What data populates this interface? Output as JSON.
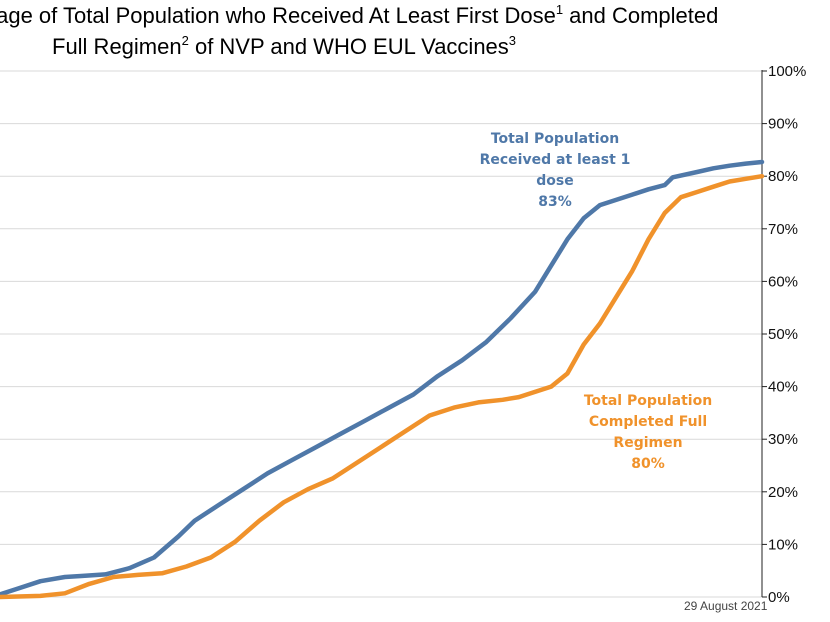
{
  "title": {
    "line1_prefix": "tage of Total Population who Received At Least First Dose",
    "line1_sup1": "1",
    "line1_mid": " and Completed",
    "line2_prefix": "Full Regimen",
    "line2_sup2": "2",
    "line2_mid": "  of NVP and WHO EUL Vaccines",
    "line2_sup3": "3"
  },
  "date_note": "29 August 2021",
  "colors": {
    "first_dose": "#4f78a8",
    "full_regimen": "#f0922b",
    "grid": "#d9d9d9",
    "axis": "#222222"
  },
  "chart_data": {
    "type": "line",
    "ylim": [
      0,
      100
    ],
    "y_ticks": [
      0,
      10,
      20,
      30,
      40,
      50,
      60,
      70,
      80,
      90,
      100
    ],
    "y_tick_labels": [
      "0%",
      "10%",
      "20%",
      "30%",
      "40%",
      "50%",
      "60%",
      "70%",
      "80%",
      "90%",
      "100%"
    ],
    "grid": true,
    "x_end_label": "29 August 2021",
    "series": [
      {
        "name": "Total Population Received at least 1 dose",
        "label_lines": [
          "Total Population",
          "Received at least 1",
          "dose",
          "83%"
        ],
        "color": "#4f78a8",
        "points": [
          [
            0,
            0.5
          ],
          [
            2,
            1.5
          ],
          [
            5,
            3.0
          ],
          [
            8,
            3.8
          ],
          [
            10,
            4.0
          ],
          [
            13,
            4.3
          ],
          [
            16,
            5.5
          ],
          [
            19,
            7.5
          ],
          [
            22,
            11.5
          ],
          [
            24,
            14.5
          ],
          [
            27,
            17.5
          ],
          [
            30,
            20.5
          ],
          [
            33,
            23.5
          ],
          [
            36,
            26.0
          ],
          [
            39,
            28.5
          ],
          [
            42,
            31.0
          ],
          [
            45,
            33.5
          ],
          [
            48,
            36.0
          ],
          [
            51,
            38.5
          ],
          [
            54,
            42.0
          ],
          [
            57,
            45.0
          ],
          [
            60,
            48.5
          ],
          [
            63,
            53.0
          ],
          [
            66,
            58.0
          ],
          [
            68,
            63.0
          ],
          [
            70,
            68.0
          ],
          [
            72,
            72.0
          ],
          [
            74,
            74.5
          ],
          [
            76,
            75.5
          ],
          [
            78,
            76.5
          ],
          [
            80,
            77.5
          ],
          [
            82,
            78.3
          ],
          [
            83,
            79.8
          ],
          [
            86,
            80.8
          ],
          [
            88,
            81.5
          ],
          [
            90,
            82.0
          ],
          [
            92,
            82.4
          ],
          [
            94,
            82.7
          ]
        ]
      },
      {
        "name": "Total Population Completed Full Regimen",
        "label_lines": [
          "Total Population",
          "Completed Full",
          "Regimen",
          "80%"
        ],
        "color": "#f0922b",
        "points": [
          [
            0,
            0
          ],
          [
            5,
            0.2
          ],
          [
            8,
            0.7
          ],
          [
            11,
            2.5
          ],
          [
            14,
            3.8
          ],
          [
            17,
            4.2
          ],
          [
            20,
            4.5
          ],
          [
            23,
            5.8
          ],
          [
            26,
            7.5
          ],
          [
            29,
            10.5
          ],
          [
            32,
            14.5
          ],
          [
            35,
            18.0
          ],
          [
            38,
            20.5
          ],
          [
            41,
            22.5
          ],
          [
            44,
            25.5
          ],
          [
            47,
            28.5
          ],
          [
            50,
            31.5
          ],
          [
            53,
            34.5
          ],
          [
            56,
            36.0
          ],
          [
            59,
            37.0
          ],
          [
            62,
            37.5
          ],
          [
            64,
            38.0
          ],
          [
            66,
            39.0
          ],
          [
            68,
            40.0
          ],
          [
            70,
            42.5
          ],
          [
            72,
            48.0
          ],
          [
            74,
            52.0
          ],
          [
            76,
            57.0
          ],
          [
            78,
            62.0
          ],
          [
            80,
            68.0
          ],
          [
            82,
            73.0
          ],
          [
            84,
            76.0
          ],
          [
            86,
            77.0
          ],
          [
            88,
            78.0
          ],
          [
            90,
            79.0
          ],
          [
            92,
            79.5
          ],
          [
            94,
            80.0
          ]
        ]
      }
    ]
  }
}
